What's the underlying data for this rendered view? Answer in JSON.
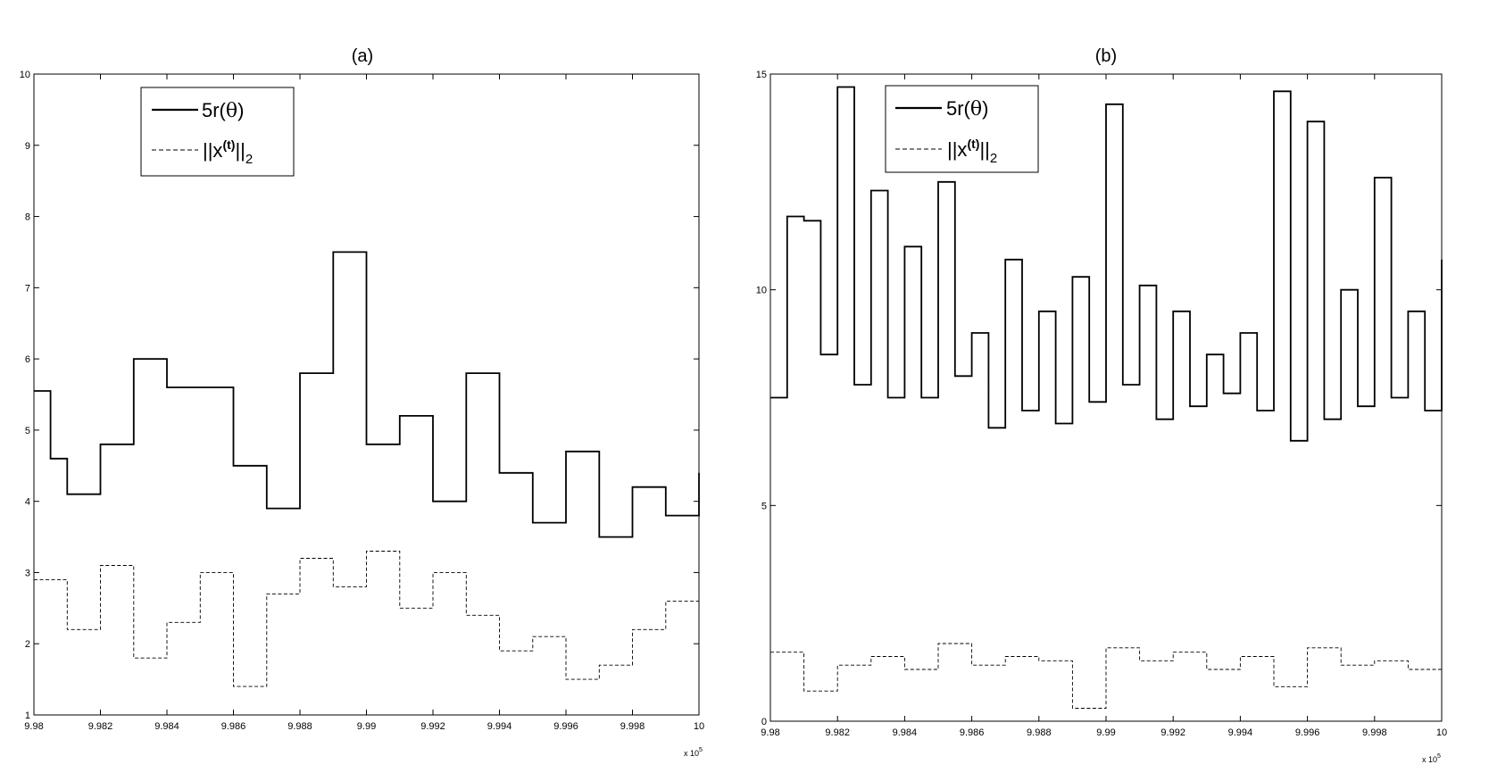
{
  "chart_data": [
    {
      "type": "line",
      "title": "(a)",
      "xlim": [
        998000,
        1000000
      ],
      "ylim": [
        1,
        10
      ],
      "x_ticks": [
        "9.98",
        "9.982",
        "9.984",
        "9.986",
        "9.988",
        "9.99",
        "9.992",
        "9.994",
        "9.996",
        "9.998",
        "10"
      ],
      "y_ticks": [
        "1",
        "2",
        "3",
        "4",
        "5",
        "6",
        "7",
        "8",
        "9",
        "10"
      ],
      "x_exponent_label": "x 10",
      "x_exponent_power": "5",
      "grid": false,
      "legend_position": "top-left",
      "legend": {
        "entry1": {
          "prefix": "5r(",
          "symbol": "θ",
          "suffix": ")"
        },
        "entry2": {
          "pre": "||x",
          "sup": "(t)",
          "mid": "||",
          "sub": "2"
        }
      },
      "series": [
        {
          "style": "solid",
          "x": [
            998000,
            998050,
            998100,
            998200,
            998300,
            998400,
            998500,
            998600,
            998700,
            998800,
            998900,
            999000,
            999100,
            999200,
            999300,
            999400,
            999500,
            999600,
            999700,
            999800,
            999900,
            1000000
          ],
          "values": [
            5.55,
            4.6,
            4.1,
            4.8,
            6.0,
            5.6,
            5.6,
            4.5,
            3.9,
            5.8,
            7.5,
            4.8,
            5.2,
            4.0,
            5.8,
            4.4,
            3.7,
            4.7,
            3.5,
            4.2,
            3.8,
            4.4
          ]
        },
        {
          "style": "dashed",
          "x": [
            998000,
            998100,
            998200,
            998300,
            998400,
            998500,
            998600,
            998700,
            998800,
            998900,
            999000,
            999100,
            999200,
            999300,
            999400,
            999500,
            999600,
            999700,
            999800,
            999900,
            1000000
          ],
          "values": [
            2.9,
            2.2,
            3.1,
            1.8,
            2.3,
            3.0,
            1.4,
            2.7,
            3.2,
            2.8,
            3.3,
            2.5,
            3.0,
            2.4,
            1.9,
            2.1,
            1.5,
            1.7,
            2.2,
            2.6,
            2.7
          ]
        }
      ]
    },
    {
      "type": "line",
      "title": "(b)",
      "xlim": [
        998000,
        1000000
      ],
      "ylim": [
        0,
        15
      ],
      "x_ticks": [
        "9.98",
        "9.982",
        "9.984",
        "9.986",
        "9.988",
        "9.99",
        "9.992",
        "9.994",
        "9.996",
        "9.998",
        "10"
      ],
      "y_ticks": [
        "0",
        "5",
        "10",
        "15"
      ],
      "x_exponent_label": "x 10",
      "x_exponent_power": "5",
      "grid": false,
      "legend_position": "top-left",
      "legend": {
        "entry1": {
          "prefix": "5r(",
          "symbol": "θ",
          "suffix": ")"
        },
        "entry2": {
          "pre": "||x",
          "sup": "(t)",
          "mid": "||",
          "sub": "2"
        }
      },
      "series": [
        {
          "style": "solid",
          "x": [
            998000,
            998050,
            998100,
            998150,
            998200,
            998250,
            998300,
            998350,
            998400,
            998450,
            998500,
            998550,
            998600,
            998650,
            998700,
            998750,
            998800,
            998850,
            998900,
            998950,
            999000,
            999050,
            999100,
            999150,
            999200,
            999250,
            999300,
            999350,
            999400,
            999450,
            999500,
            999550,
            999600,
            999650,
            999700,
            999750,
            999800,
            999850,
            999900,
            999950,
            1000000
          ],
          "values": [
            7.5,
            11.7,
            11.6,
            8.5,
            14.7,
            7.8,
            12.3,
            7.5,
            11.0,
            7.5,
            12.5,
            8.0,
            9.0,
            6.8,
            10.7,
            7.2,
            9.5,
            6.9,
            10.3,
            7.4,
            14.3,
            7.8,
            10.1,
            7.0,
            9.5,
            7.3,
            8.5,
            7.6,
            9.0,
            7.2,
            14.6,
            6.5,
            13.9,
            7.0,
            10.0,
            7.3,
            12.6,
            7.5,
            9.5,
            7.2,
            10.7
          ]
        },
        {
          "style": "dashed",
          "x": [
            998000,
            998100,
            998200,
            998300,
            998400,
            998500,
            998600,
            998700,
            998800,
            998900,
            999000,
            999100,
            999200,
            999300,
            999400,
            999500,
            999600,
            999700,
            999800,
            999900,
            1000000
          ],
          "values": [
            1.6,
            0.7,
            1.3,
            1.5,
            1.2,
            1.8,
            1.3,
            1.5,
            1.4,
            0.3,
            1.7,
            1.4,
            1.6,
            1.2,
            1.5,
            0.8,
            1.7,
            1.3,
            1.4,
            1.2,
            1.5
          ]
        }
      ]
    }
  ]
}
